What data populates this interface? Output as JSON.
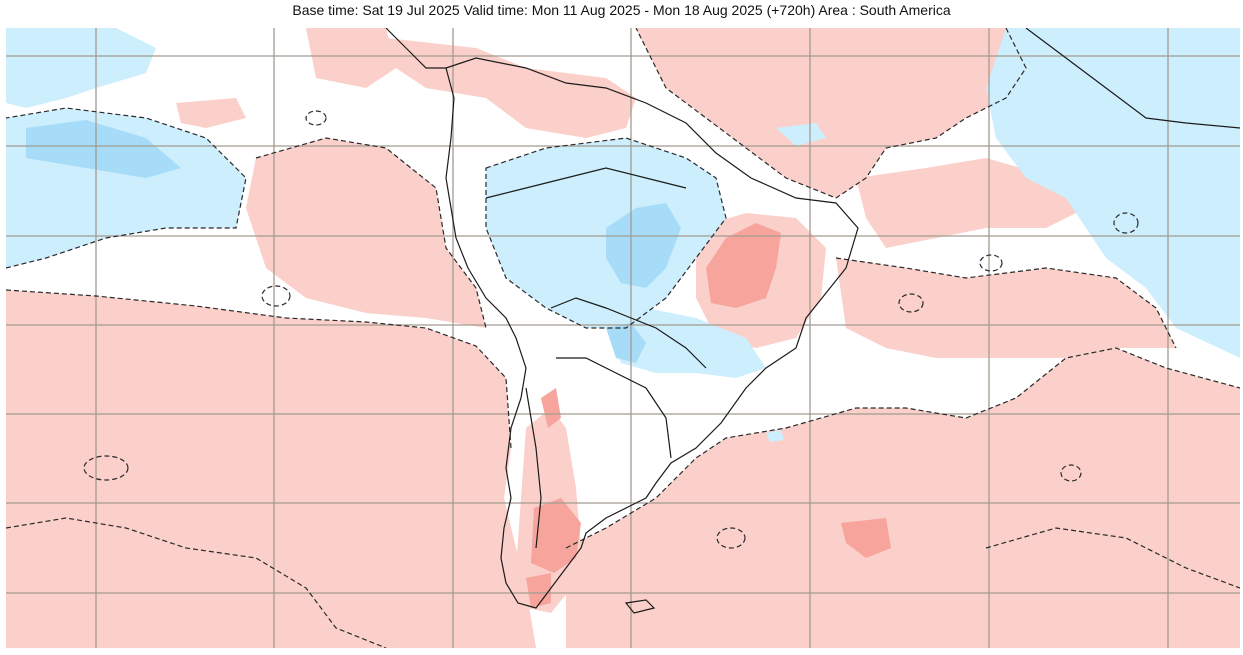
{
  "header": {
    "title": "Base time: Sat 19 Jul 2025 Valid time: Mon 11 Aug 2025 - Mon 18 Aug 2025 (+720h) Area : South America"
  },
  "map": {
    "region": "South America",
    "colors": {
      "positive_weak": "#fbcfca",
      "positive_strong": "#f6a49c",
      "negative_weak": "#cdeefd",
      "negative_strong": "#a6dcf8",
      "grid": "#a29c90",
      "coast": "#1b1b1b",
      "contour": "#2a2a2a",
      "background": "#ffffff"
    }
  }
}
